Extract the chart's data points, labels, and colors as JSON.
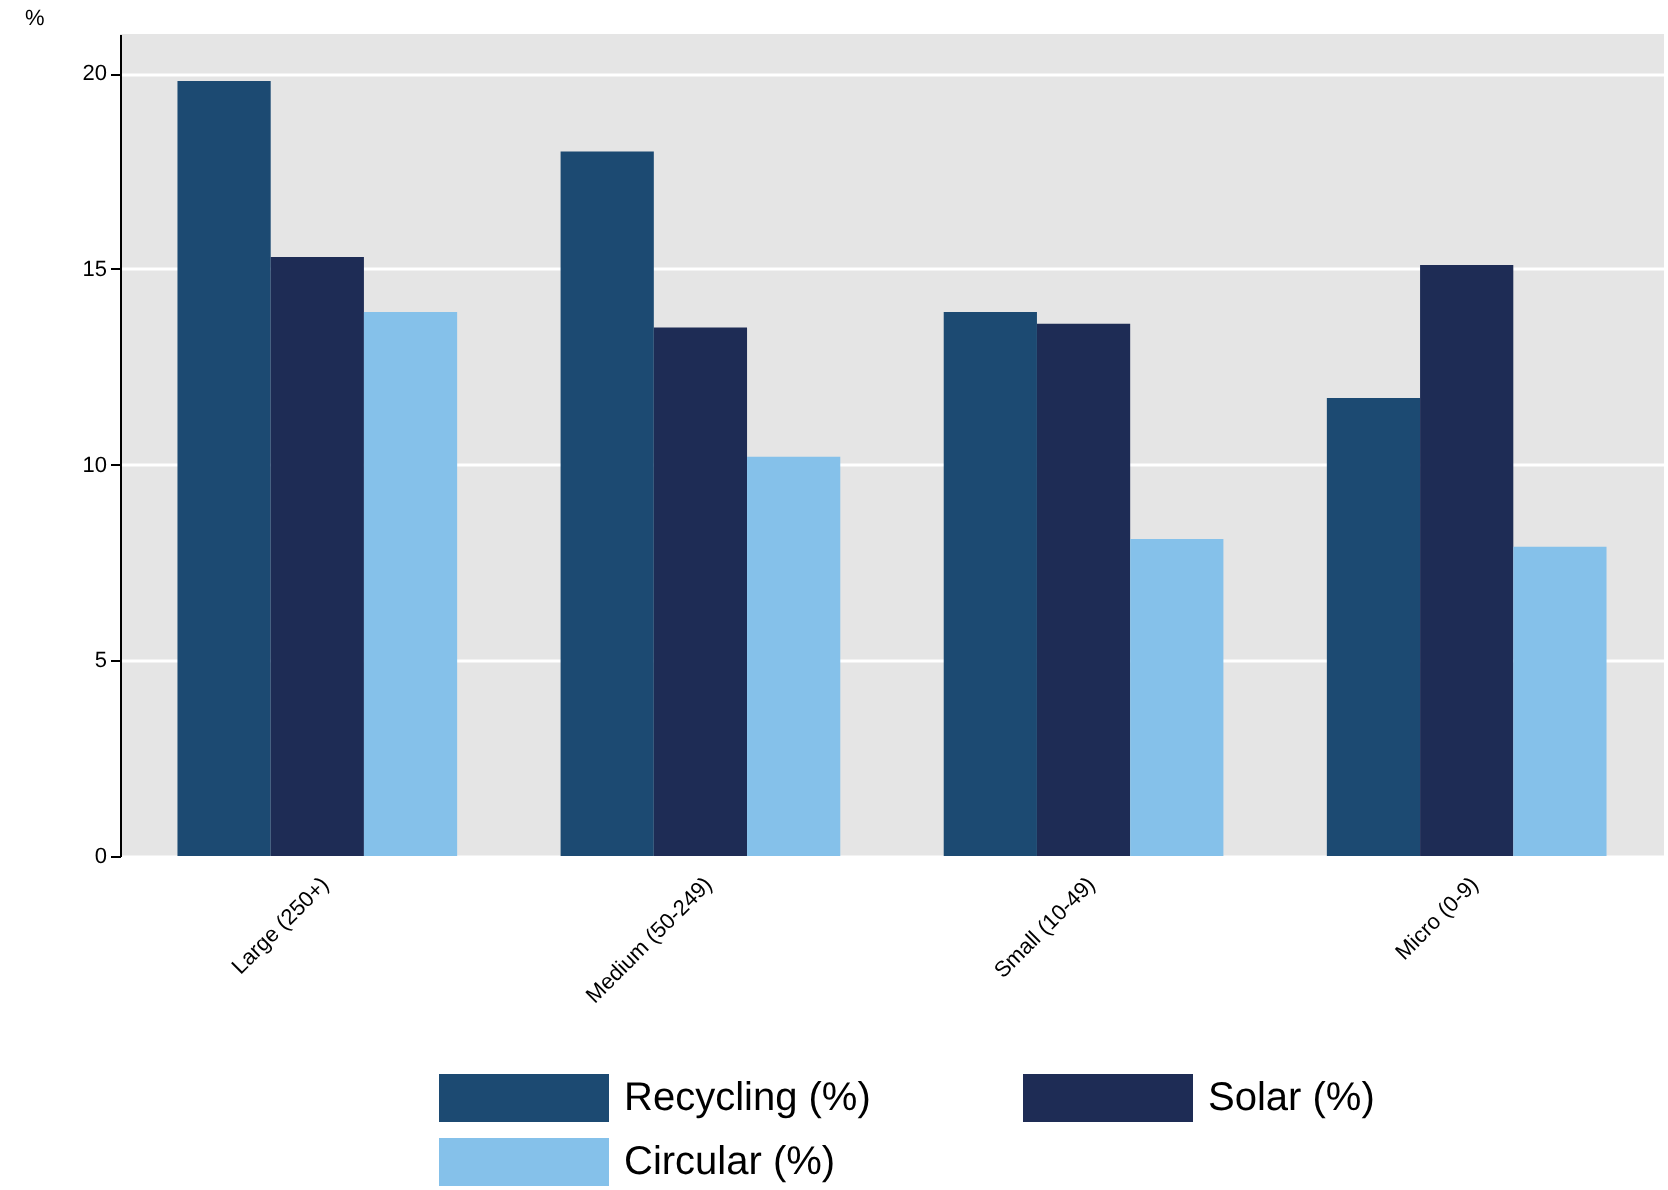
{
  "chart_data": {
    "type": "bar",
    "ylabel": "%",
    "categories": [
      "Large (250+)",
      "Medium (50-249)",
      "Small (10-49)",
      "Micro (0-9)"
    ],
    "series": [
      {
        "name": "Recycling (%)",
        "color": "#1c4a72",
        "values": [
          19.8,
          18.0,
          13.9,
          11.7
        ]
      },
      {
        "name": "Solar (%)",
        "color": "#1e2c55",
        "values": [
          15.3,
          13.5,
          13.6,
          15.1
        ]
      },
      {
        "name": "Circular (%)",
        "color": "#85c1ea",
        "values": [
          13.9,
          10.2,
          8.1,
          7.9
        ]
      }
    ],
    "ylim": [
      0,
      21
    ],
    "yticks": [
      0,
      5,
      10,
      15,
      20
    ],
    "grid": "y",
    "legend": "bottom"
  }
}
